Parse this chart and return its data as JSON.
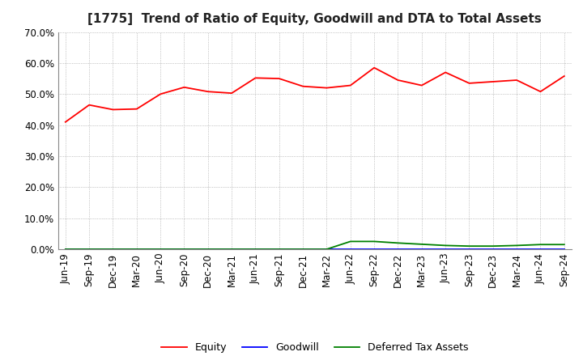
{
  "title": "[1775]  Trend of Ratio of Equity, Goodwill and DTA to Total Assets",
  "x_labels": [
    "Jun-19",
    "Sep-19",
    "Dec-19",
    "Mar-20",
    "Jun-20",
    "Sep-20",
    "Dec-20",
    "Mar-21",
    "Jun-21",
    "Sep-21",
    "Dec-21",
    "Mar-22",
    "Jun-22",
    "Sep-22",
    "Dec-22",
    "Mar-23",
    "Jun-23",
    "Sep-23",
    "Dec-23",
    "Mar-24",
    "Jun-24",
    "Sep-24"
  ],
  "equity": [
    0.41,
    0.465,
    0.45,
    0.452,
    0.5,
    0.522,
    0.508,
    0.503,
    0.552,
    0.55,
    0.525,
    0.52,
    0.528,
    0.585,
    0.545,
    0.528,
    0.57,
    0.535,
    0.54,
    0.545,
    0.508,
    0.558
  ],
  "goodwill": [
    0.0,
    0.0,
    0.0,
    0.0,
    0.0,
    0.0,
    0.0,
    0.0,
    0.0,
    0.0,
    0.0,
    0.0,
    0.0,
    0.0,
    0.0,
    0.0,
    0.0,
    0.0,
    0.0,
    0.0,
    0.0,
    0.0
  ],
  "dta": [
    0.0,
    0.0,
    0.0,
    0.0,
    0.0,
    0.0,
    0.0,
    0.0,
    0.0,
    0.0,
    0.0,
    0.0,
    0.025,
    0.025,
    0.02,
    0.016,
    0.012,
    0.01,
    0.01,
    0.012,
    0.015,
    0.015
  ],
  "equity_color": "#FF0000",
  "goodwill_color": "#0000FF",
  "dta_color": "#008000",
  "ylim": [
    0.0,
    0.7
  ],
  "yticks": [
    0.0,
    0.1,
    0.2,
    0.3,
    0.4,
    0.5,
    0.6,
    0.7
  ],
  "background_color": "#FFFFFF",
  "grid_color": "#999999",
  "title_fontsize": 11,
  "tick_fontsize": 8.5,
  "legend_fontsize": 9
}
